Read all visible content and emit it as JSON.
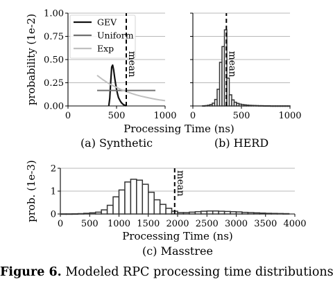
{
  "caption": {
    "label": "Figure 6.",
    "text": " Modeled RPC processing time distributions."
  },
  "chart_data": [
    {
      "id": "synthetic",
      "type": "line",
      "subtitle": "(a) Synthetic",
      "xlabel": "Processing Time (ns)",
      "ylabel": "probability (1e-2)",
      "xlim": [
        0,
        1000
      ],
      "ylim": [
        0,
        1.0
      ],
      "xticks": [
        "0",
        "500",
        "1000"
      ],
      "yticks": [
        "0.00",
        "0.25",
        "0.50",
        "0.75",
        "1.00"
      ],
      "grid": "horizontal",
      "legend": "top-left",
      "mean_label": "mean",
      "mean_x": 600,
      "colors": {
        "GEV": "#111111",
        "Uniform": "#707070",
        "Exp": "#c0c0c0",
        "grid": "#b8b8b8"
      },
      "series": [
        {
          "name": "GEV",
          "x": [
            420,
            430,
            440,
            450,
            460,
            470,
            480,
            490,
            500,
            510,
            520,
            530,
            540,
            550,
            560,
            570,
            580,
            590,
            600
          ],
          "y": [
            0.0,
            0.08,
            0.26,
            0.42,
            0.44,
            0.39,
            0.31,
            0.24,
            0.18,
            0.13,
            0.09,
            0.07,
            0.05,
            0.035,
            0.025,
            0.015,
            0.01,
            0.005,
            0.0
          ]
        },
        {
          "name": "Uniform",
          "x": [
            300,
            900
          ],
          "y": [
            0.167,
            0.167
          ]
        },
        {
          "name": "Exp",
          "x": [
            300,
            350,
            400,
            450,
            500,
            550,
            600,
            650,
            700,
            750,
            800,
            850,
            900,
            950,
            1000
          ],
          "y": [
            0.33,
            0.29,
            0.255,
            0.225,
            0.2,
            0.175,
            0.155,
            0.137,
            0.12,
            0.106,
            0.094,
            0.083,
            0.073,
            0.064,
            0.057
          ]
        }
      ]
    },
    {
      "id": "herd",
      "type": "bar",
      "subtitle": "(b) HERD",
      "xlabel": "Processing Time (ns)",
      "ylabel": "",
      "xlim": [
        0,
        1000
      ],
      "ylim": [
        0,
        1.0
      ],
      "xticks": [
        "0",
        "500",
        "1000"
      ],
      "grid": "horizontal",
      "mean_label": "mean",
      "mean_x": 345,
      "bin_width": 25,
      "bins_start": [
        100,
        125,
        150,
        175,
        200,
        225,
        250,
        275,
        300,
        325,
        350,
        375,
        400,
        425,
        450,
        475,
        500,
        525,
        550,
        575,
        600,
        625,
        650,
        675,
        700,
        725,
        750,
        775,
        800,
        825,
        850,
        875,
        900,
        925,
        950,
        975
      ],
      "values": [
        0.002,
        0.004,
        0.008,
        0.015,
        0.03,
        0.07,
        0.18,
        0.47,
        0.64,
        0.82,
        0.3,
        0.12,
        0.065,
        0.04,
        0.028,
        0.02,
        0.015,
        0.012,
        0.009,
        0.007,
        0.006,
        0.005,
        0.004,
        0.003,
        0.003,
        0.002,
        0.002,
        0.002,
        0.001,
        0.001,
        0.001,
        0.001,
        0.001,
        0.001,
        0.001,
        0.001
      ]
    },
    {
      "id": "masstree",
      "type": "bar",
      "subtitle": "(c) Masstree",
      "xlabel": "Processing Time (ns)",
      "ylabel": "prob. (1e-3)",
      "xlim": [
        0,
        4000
      ],
      "ylim": [
        0,
        2
      ],
      "xticks": [
        "0",
        "500",
        "1000",
        "1500",
        "2000",
        "2500",
        "3000",
        "3500",
        "4000"
      ],
      "yticks": [
        "0",
        "1",
        "2"
      ],
      "grid": "horizontal",
      "mean_label": "mean",
      "mean_x": 1950,
      "bin_width": 100,
      "bins_start": [
        0,
        100,
        200,
        300,
        400,
        500,
        600,
        700,
        800,
        900,
        1000,
        1100,
        1200,
        1300,
        1400,
        1500,
        1600,
        1700,
        1800,
        1900,
        2000,
        2100,
        2200,
        2300,
        2400,
        2500,
        2600,
        2700,
        2800,
        2900,
        3000,
        3100,
        3200,
        3300,
        3400,
        3500,
        3600,
        3700,
        3800
      ],
      "values": [
        0.005,
        0.005,
        0.008,
        0.015,
        0.03,
        0.05,
        0.08,
        0.18,
        0.38,
        0.75,
        1.05,
        1.4,
        1.52,
        1.48,
        1.3,
        0.95,
        0.62,
        0.42,
        0.25,
        0.12,
        0.06,
        0.06,
        0.08,
        0.1,
        0.12,
        0.13,
        0.13,
        0.12,
        0.11,
        0.1,
        0.09,
        0.07,
        0.06,
        0.05,
        0.04,
        0.03,
        0.025,
        0.02,
        0.015
      ]
    }
  ]
}
